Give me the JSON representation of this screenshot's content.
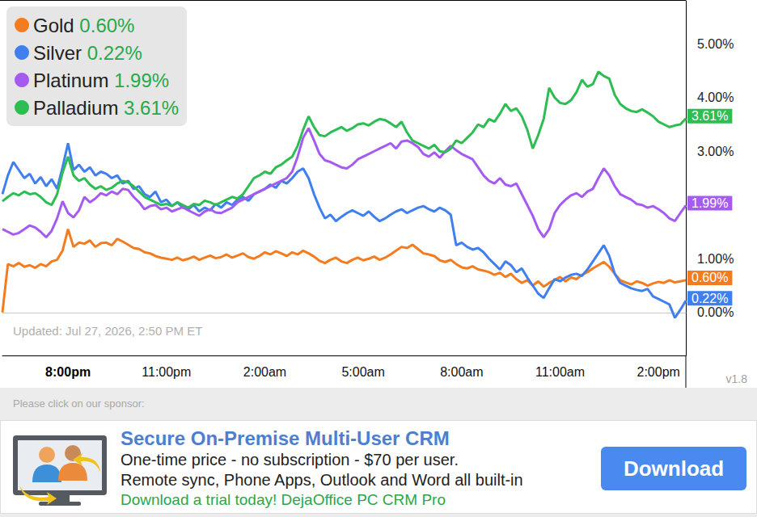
{
  "chart_data": {
    "type": "line",
    "categories": [
      null,
      null,
      null,
      null,
      null,
      null,
      null,
      null,
      null,
      null,
      null,
      null,
      "8:00pm",
      null,
      null,
      null,
      null,
      null,
      null,
      null,
      null,
      null,
      null,
      null,
      null,
      null,
      null,
      null,
      null,
      null,
      "11:00pm",
      null,
      null,
      null,
      null,
      null,
      null,
      null,
      null,
      null,
      null,
      null,
      null,
      null,
      null,
      null,
      null,
      null,
      "2:00am",
      null,
      null,
      null,
      null,
      null,
      null,
      null,
      null,
      null,
      null,
      null,
      null,
      null,
      null,
      null,
      null,
      null,
      "5:00am",
      null,
      null,
      null,
      null,
      null,
      null,
      null,
      null,
      null,
      null,
      null,
      null,
      null,
      null,
      null,
      null,
      null,
      "8:00am",
      null,
      null,
      null,
      null,
      null,
      null,
      null,
      null,
      null,
      null,
      null,
      null,
      null,
      null,
      null,
      null,
      null,
      "11:00am",
      null,
      null,
      null,
      null,
      null,
      null,
      null,
      null,
      null,
      null,
      null,
      null,
      null,
      null,
      null,
      null,
      null,
      "2:00pm",
      null,
      null,
      null,
      null,
      null
    ],
    "series": [
      {
        "name": "Gold",
        "color": "#f47c20",
        "end_label": "0.60%",
        "values": [
          0.0,
          0.9,
          0.86,
          0.92,
          0.85,
          0.88,
          0.83,
          0.9,
          0.86,
          0.95,
          0.98,
          1.15,
          1.55,
          1.22,
          1.3,
          1.28,
          1.34,
          1.22,
          1.29,
          1.3,
          1.25,
          1.37,
          1.32,
          1.26,
          1.2,
          1.18,
          1.12,
          1.1,
          1.05,
          1.02,
          1.0,
          0.98,
          1.02,
          0.97,
          1.0,
          1.04,
          0.98,
          1.02,
          1.06,
          1.01,
          1.03,
          1.08,
          1.02,
          1.06,
          1.1,
          1.03,
          1.0,
          1.05,
          1.12,
          1.08,
          1.14,
          1.1,
          1.05,
          1.12,
          1.08,
          1.15,
          1.1,
          1.04,
          0.96,
          0.92,
          0.98,
          1.02,
          0.95,
          0.92,
          0.98,
          1.02,
          0.97,
          1.0,
          1.04,
          0.98,
          1.02,
          1.08,
          1.15,
          1.22,
          1.2,
          1.26,
          1.18,
          1.1,
          1.08,
          1.05,
          0.97,
          0.94,
          0.98,
          0.9,
          0.84,
          0.82,
          0.86,
          0.8,
          0.78,
          0.75,
          0.7,
          0.74,
          0.66,
          0.72,
          0.62,
          0.55,
          0.6,
          0.5,
          0.58,
          0.48,
          0.55,
          0.6,
          0.66,
          0.58,
          0.65,
          0.62,
          0.7,
          0.75,
          0.82,
          0.88,
          0.94,
          0.85,
          0.72,
          0.6,
          0.56,
          0.52,
          0.58,
          0.55,
          0.5,
          0.54,
          0.57,
          0.55,
          0.6,
          0.56,
          0.58,
          0.6
        ]
      },
      {
        "name": "Silver",
        "color": "#3f7fef",
        "end_label": "0.22%",
        "values": [
          2.2,
          2.55,
          2.8,
          2.65,
          2.5,
          2.58,
          2.4,
          2.52,
          2.35,
          2.48,
          2.3,
          2.7,
          3.15,
          2.65,
          2.75,
          2.62,
          2.7,
          2.55,
          2.62,
          2.58,
          2.5,
          2.55,
          2.4,
          2.45,
          2.3,
          2.35,
          2.2,
          2.15,
          2.25,
          2.05,
          2.1,
          1.98,
          2.05,
          1.95,
          1.92,
          2.0,
          1.88,
          1.95,
          1.9,
          2.02,
          1.95,
          2.05,
          2.0,
          2.1,
          2.15,
          2.08,
          2.2,
          2.25,
          2.3,
          2.38,
          2.32,
          2.45,
          2.4,
          2.5,
          2.62,
          2.68,
          2.5,
          2.2,
          1.95,
          1.75,
          1.82,
          1.7,
          1.78,
          1.85,
          1.9,
          1.85,
          1.8,
          1.88,
          1.78,
          1.7,
          1.75,
          1.82,
          1.88,
          1.92,
          1.85,
          1.9,
          1.95,
          1.98,
          1.92,
          1.88,
          1.95,
          1.9,
          1.82,
          1.25,
          1.3,
          1.22,
          1.17,
          1.2,
          1.12,
          1.0,
          0.9,
          0.8,
          0.95,
          0.88,
          0.75,
          0.82,
          0.65,
          0.5,
          0.35,
          0.27,
          0.45,
          0.62,
          0.58,
          0.65,
          0.7,
          0.72,
          0.68,
          0.8,
          0.95,
          1.1,
          1.25,
          1.05,
          0.72,
          0.55,
          0.5,
          0.45,
          0.42,
          0.4,
          0.44,
          0.3,
          0.25,
          0.2,
          0.15,
          -0.1,
          0.05,
          0.22
        ]
      },
      {
        "name": "Platinum",
        "color": "#a55bf2",
        "end_label": "1.99%",
        "values": [
          1.55,
          1.5,
          1.45,
          1.48,
          1.55,
          1.62,
          1.58,
          1.5,
          1.4,
          1.52,
          1.75,
          2.07,
          1.85,
          1.77,
          1.9,
          2.15,
          2.05,
          2.12,
          2.22,
          2.18,
          2.25,
          2.2,
          2.3,
          2.28,
          2.15,
          2.05,
          1.92,
          1.98,
          2.0,
          1.92,
          1.95,
          1.88,
          1.92,
          1.96,
          1.9,
          1.85,
          1.8,
          1.88,
          1.92,
          1.86,
          1.85,
          1.9,
          1.95,
          2.05,
          2.1,
          2.15,
          2.2,
          2.25,
          2.3,
          2.35,
          2.4,
          2.45,
          2.5,
          2.62,
          2.9,
          3.25,
          3.43,
          3.2,
          2.95,
          2.83,
          2.8,
          2.75,
          2.7,
          2.68,
          2.75,
          2.85,
          2.9,
          2.95,
          3.0,
          3.05,
          3.1,
          3.15,
          3.05,
          3.18,
          3.2,
          3.15,
          3.08,
          2.95,
          2.9,
          2.98,
          2.88,
          3.0,
          3.1,
          3.02,
          2.95,
          2.9,
          2.85,
          2.7,
          2.55,
          2.45,
          2.4,
          2.5,
          2.38,
          2.35,
          2.4,
          2.2,
          2.0,
          1.8,
          1.55,
          1.4,
          1.55,
          1.85,
          2.0,
          2.1,
          2.18,
          2.22,
          2.15,
          2.25,
          2.3,
          2.5,
          2.68,
          2.55,
          2.35,
          2.2,
          2.15,
          2.1,
          2.02,
          2.0,
          1.95,
          1.98,
          1.92,
          1.85,
          1.75,
          1.7,
          1.85,
          1.99
        ]
      },
      {
        "name": "Palladium",
        "color": "#2dbd52",
        "end_label": "3.61%",
        "values": [
          2.07,
          2.15,
          2.22,
          2.18,
          2.25,
          2.2,
          2.22,
          2.15,
          2.05,
          2.0,
          2.2,
          2.6,
          2.9,
          2.55,
          2.45,
          2.5,
          2.38,
          2.3,
          2.35,
          2.28,
          2.32,
          2.4,
          2.45,
          2.42,
          2.35,
          2.25,
          2.15,
          2.1,
          2.05,
          2.0,
          2.02,
          1.98,
          2.05,
          2.0,
          1.95,
          2.02,
          2.0,
          2.08,
          2.05,
          2.0,
          2.05,
          2.1,
          2.15,
          2.12,
          2.2,
          2.35,
          2.5,
          2.55,
          2.62,
          2.58,
          2.7,
          2.75,
          2.83,
          2.9,
          3.1,
          3.4,
          3.65,
          3.45,
          3.3,
          3.28,
          3.35,
          3.4,
          3.45,
          3.38,
          3.43,
          3.5,
          3.52,
          3.48,
          3.55,
          3.6,
          3.58,
          3.52,
          3.45,
          3.55,
          3.35,
          3.2,
          3.15,
          3.1,
          3.05,
          3.12,
          3.0,
          2.98,
          3.05,
          3.2,
          3.15,
          3.25,
          3.35,
          3.5,
          3.45,
          3.6,
          3.55,
          3.7,
          3.88,
          3.75,
          3.8,
          3.65,
          3.4,
          3.05,
          3.3,
          3.6,
          4.18,
          4.0,
          3.9,
          3.88,
          3.95,
          4.1,
          4.33,
          4.2,
          4.25,
          4.48,
          4.4,
          4.35,
          4.05,
          3.88,
          3.8,
          3.75,
          3.73,
          3.78,
          3.72,
          3.65,
          3.55,
          3.5,
          3.45,
          3.48,
          3.5,
          3.61
        ]
      }
    ],
    "ylim": [
      -0.8,
      5.8
    ],
    "yticks": [
      {
        "value": 0,
        "label": "0.00%"
      },
      {
        "value": 1,
        "label": "1.00%"
      },
      {
        "value": 3,
        "label": "3.00%"
      },
      {
        "value": 4,
        "label": "4.00%"
      },
      {
        "value": 5,
        "label": "5.00%"
      }
    ],
    "grid": false,
    "legend": "top-left",
    "annotations": [
      "Updated: Jul 27, 2026, 2:50 PM ET",
      "v1.8"
    ]
  },
  "sponsor": {
    "prompt": "Please click on our sponsor:",
    "title": "Secure On-Premise Multi-User CRM",
    "lines": [
      "One-time price - no subscription - $70 per user.",
      "Remote sync, Phone Apps, Outlook and Word all built-in"
    ],
    "tagline": "Download a trial today! DejaOffice PC CRM Pro",
    "button": "Download"
  }
}
